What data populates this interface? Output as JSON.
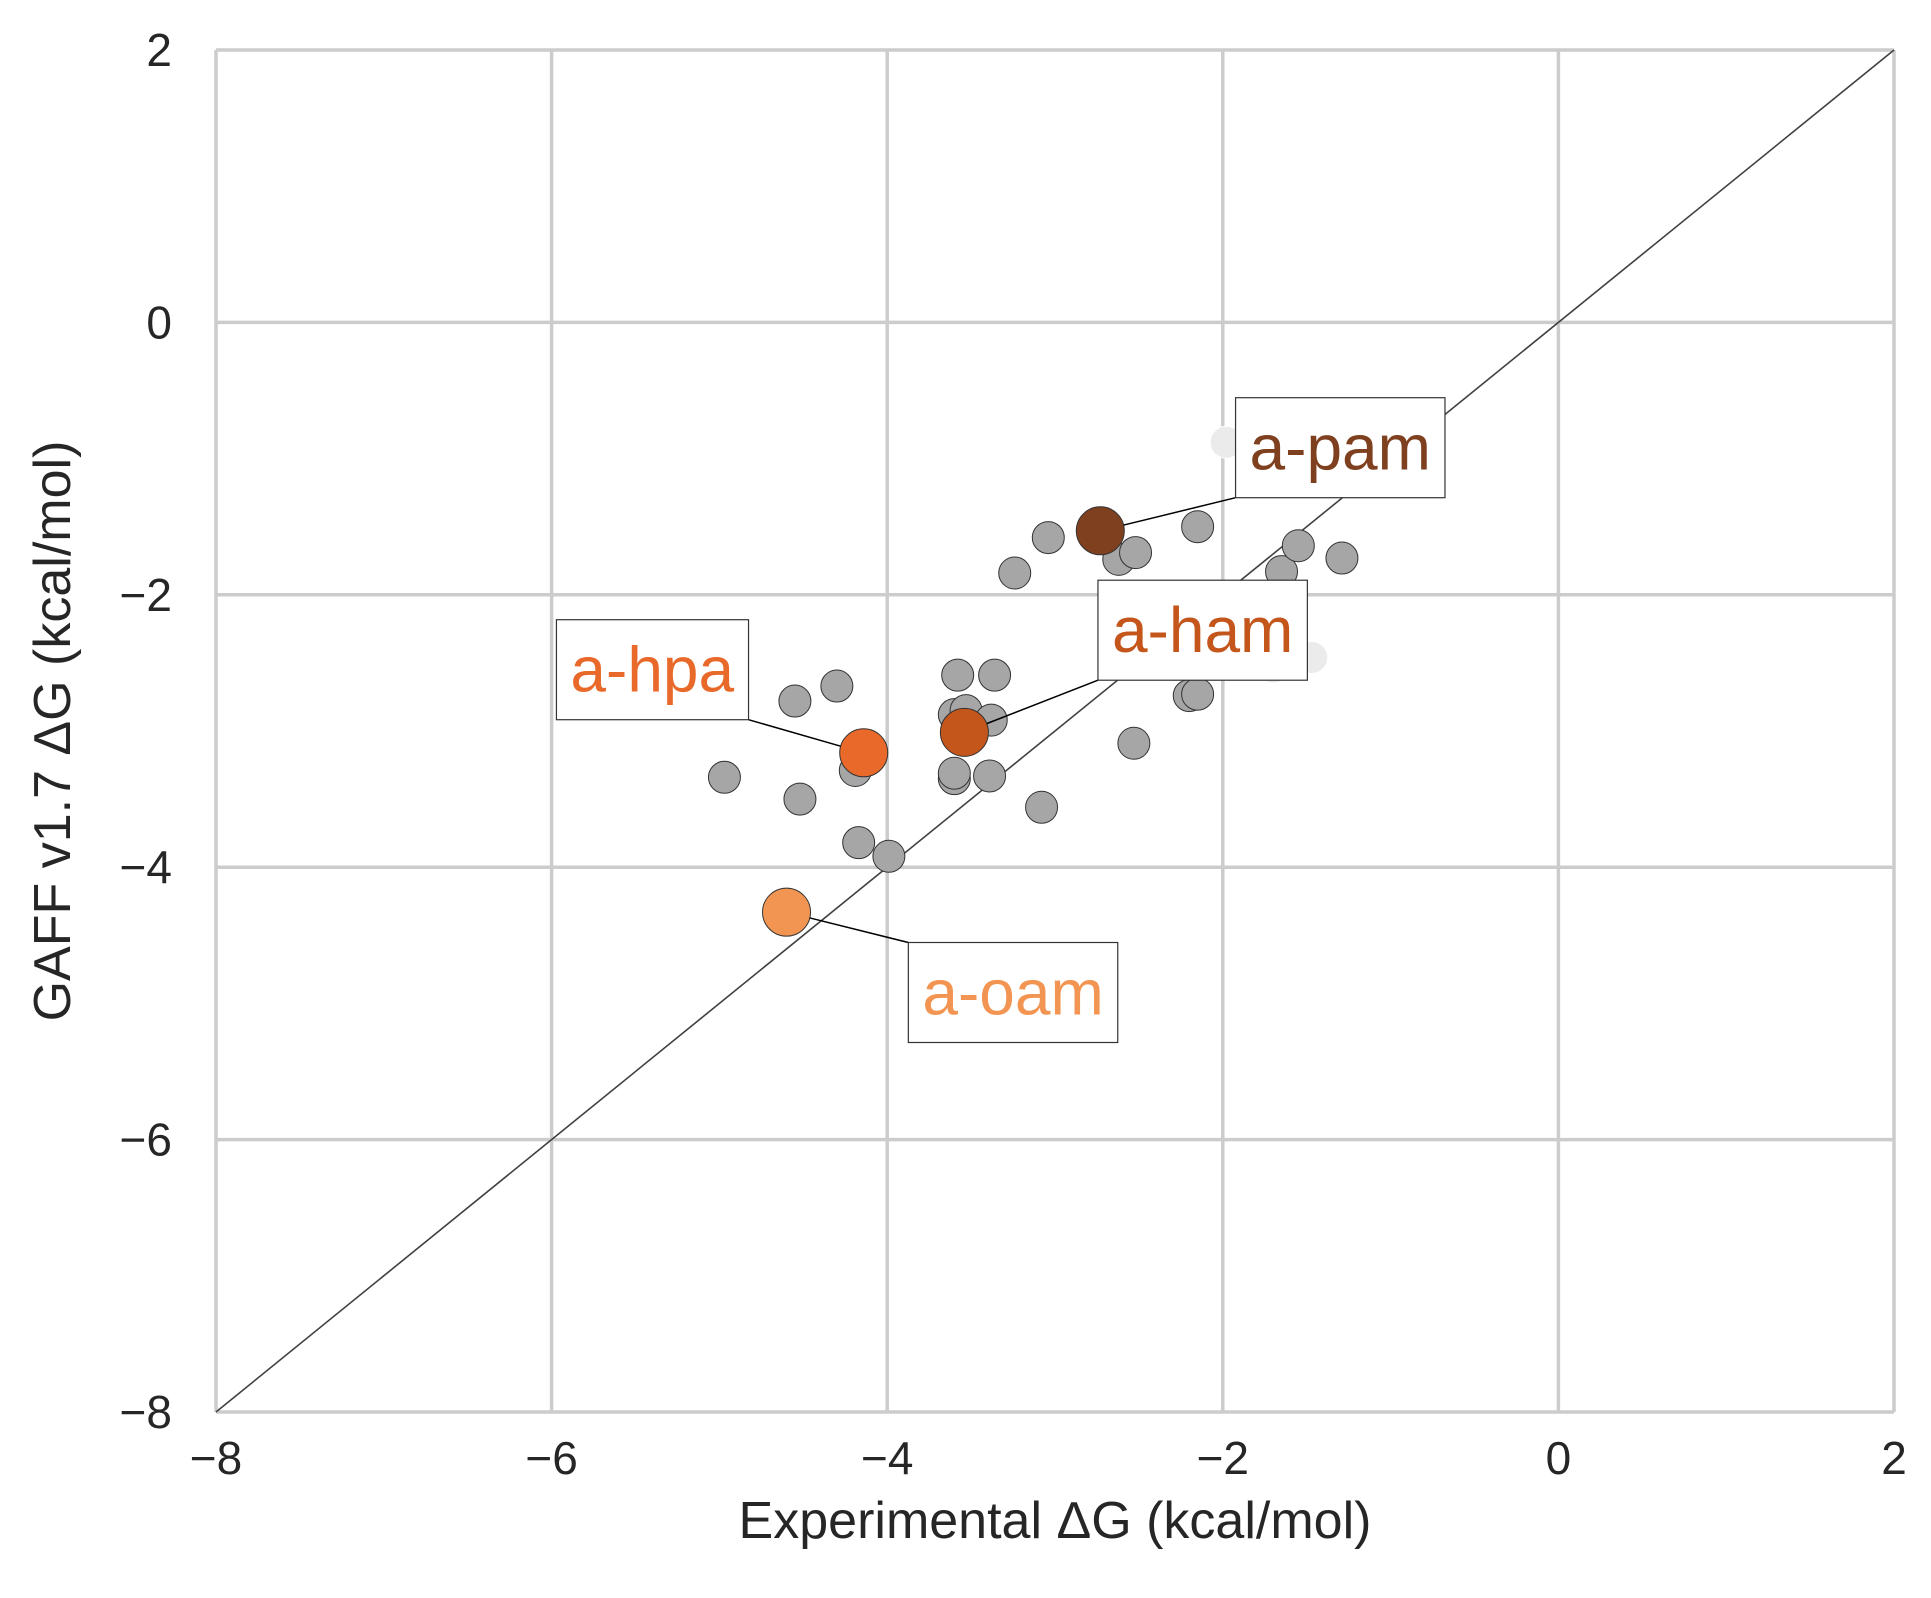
{
  "chart_data": {
    "type": "scatter",
    "title": "",
    "xlabel": "Experimental ΔG (kcal/mol)",
    "ylabel": "GAFF v1.7 ΔG (kcal/mol)",
    "xlim": [
      -8,
      2
    ],
    "ylim": [
      -8,
      2
    ],
    "xticks": [
      -8,
      -6,
      -4,
      -2,
      0,
      2
    ],
    "yticks": [
      -8,
      -6,
      -4,
      -2,
      0,
      2
    ],
    "xtick_labels": [
      "−8",
      "−6",
      "−4",
      "−2",
      "0",
      "2"
    ],
    "ytick_labels": [
      "−8",
      "−6",
      "−4",
      "−2",
      "0",
      "2"
    ],
    "grid": true,
    "identity_line": true,
    "colors": {
      "background_point": "#a6a6a6",
      "faded_point": "#ebebeb",
      "grid": "#cccccc",
      "identity": "#404040"
    },
    "background_points": [
      [
        -4.97,
        -3.34
      ],
      [
        -4.52,
        -3.5
      ],
      [
        -4.55,
        -2.78
      ],
      [
        -4.3,
        -2.67
      ],
      [
        -4.19,
        -3.29
      ],
      [
        -4.17,
        -3.82
      ],
      [
        -3.99,
        -3.92
      ],
      [
        -3.58,
        -2.59
      ],
      [
        -3.6,
        -2.88
      ],
      [
        -3.53,
        -2.85
      ],
      [
        -3.6,
        -3.35
      ],
      [
        -3.6,
        -3.31
      ],
      [
        -3.36,
        -2.59
      ],
      [
        -3.38,
        -2.92
      ],
      [
        -3.39,
        -3.33
      ],
      [
        -3.24,
        -1.84
      ],
      [
        -3.04,
        -1.58
      ],
      [
        -3.08,
        -3.56
      ],
      [
        -2.62,
        -1.74
      ],
      [
        -2.52,
        -1.69
      ],
      [
        -2.53,
        -3.09
      ],
      [
        -2.2,
        -2.74
      ],
      [
        -2.15,
        -2.73
      ],
      [
        -2.15,
        -1.5
      ],
      [
        -2.26,
        -2.46
      ],
      [
        -1.65,
        -1.83
      ],
      [
        -1.55,
        -1.64
      ],
      [
        -1.29,
        -1.73
      ]
    ],
    "faded_points": [
      [
        -1.98,
        -0.88
      ],
      [
        -1.7,
        -0.81
      ],
      [
        -1.56,
        -0.84
      ],
      [
        -1.53,
        -1.1
      ],
      [
        -2.5,
        -2.01
      ],
      [
        -2.58,
        -2.2
      ],
      [
        -1.7,
        -2.53
      ],
      [
        -1.47,
        -2.46
      ],
      [
        -1.6,
        -2.42
      ]
    ],
    "highlighted": [
      {
        "name": "a-pam",
        "x": -2.73,
        "y": -1.53,
        "color": "#7f4020",
        "label_x": -1.3,
        "label_y": -0.92,
        "label_anchor": "middle"
      },
      {
        "name": "a-ham",
        "x": -3.54,
        "y": -3.01,
        "color": "#c4561b",
        "label_x": -2.12,
        "label_y": -2.26,
        "label_anchor": "middle"
      },
      {
        "name": "a-hpa",
        "x": -4.14,
        "y": -3.16,
        "color": "#e8692a",
        "label_x": -5.4,
        "label_y": -2.55,
        "label_anchor": "middle"
      },
      {
        "name": "a-oam",
        "x": -4.6,
        "y": -4.33,
        "color": "#f39552",
        "label_x": -3.25,
        "label_y": -4.92,
        "label_anchor": "middle"
      }
    ]
  }
}
